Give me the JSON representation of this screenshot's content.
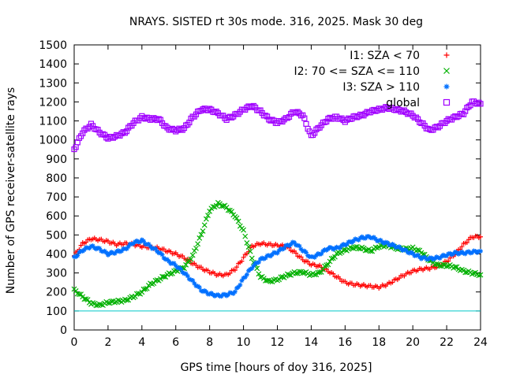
{
  "chart_data": {
    "type": "scatter",
    "title": "NRAYS. SISTED rt 30s mode. 316, 2025. Mask 30 deg",
    "xlabel": "GPS time [hours of doy 316, 2025]",
    "ylabel": "Number of GPS receiver-satellite rays",
    "xlim": [
      0,
      24
    ],
    "ylim": [
      0,
      1500
    ],
    "xticks": [
      "0",
      "2",
      "4",
      "6",
      "8",
      "10",
      "12",
      "14",
      "16",
      "18",
      "20",
      "22",
      "24"
    ],
    "yticks": [
      "0",
      "100",
      "200",
      "300",
      "400",
      "500",
      "600",
      "700",
      "800",
      "900",
      "1000",
      "1100",
      "1200",
      "1300",
      "1400",
      "1500"
    ],
    "threshold": {
      "y": 100,
      "color": "#00c8c8"
    },
    "legend_position": "top-right",
    "series": [
      {
        "name": "I1: SZA < 70",
        "marker": "+",
        "color": "#ff0000",
        "x": [
          0,
          0.5,
          1,
          1.5,
          2,
          2.5,
          3,
          3.5,
          4,
          4.5,
          5,
          5.5,
          6,
          6.5,
          7,
          7.5,
          8,
          8.5,
          9,
          9.5,
          10,
          10.5,
          11,
          11.5,
          12,
          12.5,
          13,
          13.5,
          14,
          14.5,
          15,
          15.5,
          16,
          16.5,
          17,
          17.5,
          18,
          18.5,
          19,
          19.5,
          20,
          20.5,
          21,
          21.5,
          22,
          22.5,
          23,
          23.5,
          24
        ],
        "y": [
          390,
          455,
          480,
          475,
          465,
          450,
          455,
          450,
          440,
          435,
          430,
          415,
          400,
          380,
          350,
          325,
          305,
          290,
          290,
          320,
          380,
          440,
          455,
          450,
          445,
          440,
          410,
          370,
          345,
          335,
          310,
          280,
          250,
          240,
          235,
          230,
          225,
          240,
          265,
          290,
          310,
          320,
          325,
          335,
          360,
          400,
          450,
          490,
          490
        ]
      },
      {
        "name": "I2: 70 <= SZA <= 110",
        "marker": "x",
        "color": "#00b000",
        "x": [
          0,
          0.5,
          1,
          1.5,
          2,
          2.5,
          3,
          3.5,
          4,
          4.5,
          5,
          5.5,
          6,
          6.5,
          7,
          7.5,
          8,
          8.5,
          9,
          9.5,
          10,
          10.5,
          11,
          11.5,
          12,
          12.5,
          13,
          13.5,
          14,
          14.5,
          15,
          15.5,
          16,
          16.5,
          17,
          17.5,
          18,
          18.5,
          19,
          19.5,
          20,
          20.5,
          21,
          21.5,
          22,
          22.5,
          23,
          23.5,
          24
        ],
        "y": [
          210,
          175,
          140,
          130,
          145,
          150,
          155,
          175,
          200,
          240,
          265,
          290,
          310,
          330,
          390,
          500,
          630,
          665,
          645,
          600,
          520,
          380,
          280,
          255,
          265,
          285,
          300,
          305,
          290,
          300,
          350,
          400,
          420,
          435,
          430,
          415,
          440,
          445,
          430,
          425,
          430,
          410,
          365,
          340,
          340,
          330,
          310,
          300,
          290
        ]
      },
      {
        "name": "I3: SZA > 110",
        "marker": "*",
        "color": "#0070ff",
        "x": [
          0,
          0.5,
          1,
          1.5,
          2,
          2.5,
          3,
          3.5,
          4,
          4.5,
          5,
          5.5,
          6,
          6.5,
          7,
          7.5,
          8,
          8.5,
          9,
          9.5,
          10,
          10.5,
          11,
          11.5,
          12,
          12.5,
          13,
          13.5,
          14,
          14.5,
          15,
          15.5,
          16,
          16.5,
          17,
          17.5,
          18,
          18.5,
          19,
          19.5,
          20,
          20.5,
          21,
          21.5,
          22,
          22.5,
          23,
          23.5,
          24
        ],
        "y": [
          380,
          420,
          440,
          425,
          400,
          410,
          425,
          460,
          470,
          440,
          410,
          365,
          340,
          300,
          255,
          210,
          190,
          180,
          185,
          200,
          270,
          330,
          370,
          390,
          410,
          440,
          460,
          420,
          380,
          400,
          430,
          430,
          450,
          470,
          485,
          490,
          470,
          455,
          440,
          420,
          400,
          380,
          375,
          380,
          395,
          405,
          405,
          410,
          415
        ]
      },
      {
        "name": "global",
        "marker": "square",
        "color": "#a000ff",
        "x": [
          0,
          0.5,
          1,
          1.5,
          2,
          2.5,
          3,
          3.5,
          4,
          4.5,
          5,
          5.5,
          6,
          6.5,
          7,
          7.5,
          8,
          8.5,
          9,
          9.5,
          10,
          10.5,
          11,
          11.5,
          12,
          12.5,
          13,
          13.5,
          14,
          14.5,
          15,
          15.5,
          16,
          16.5,
          17,
          17.5,
          18,
          18.5,
          19,
          19.5,
          20,
          20.5,
          21,
          21.5,
          22,
          22.5,
          23,
          23.5,
          24
        ],
        "y": [
          950,
          1040,
          1080,
          1040,
          1010,
          1020,
          1040,
          1090,
          1120,
          1110,
          1110,
          1060,
          1050,
          1060,
          1120,
          1160,
          1160,
          1140,
          1110,
          1130,
          1160,
          1180,
          1150,
          1110,
          1090,
          1110,
          1150,
          1130,
          1020,
          1070,
          1110,
          1120,
          1100,
          1120,
          1130,
          1150,
          1160,
          1170,
          1160,
          1150,
          1130,
          1090,
          1050,
          1070,
          1100,
          1120,
          1140,
          1200,
          1190
        ]
      }
    ]
  }
}
